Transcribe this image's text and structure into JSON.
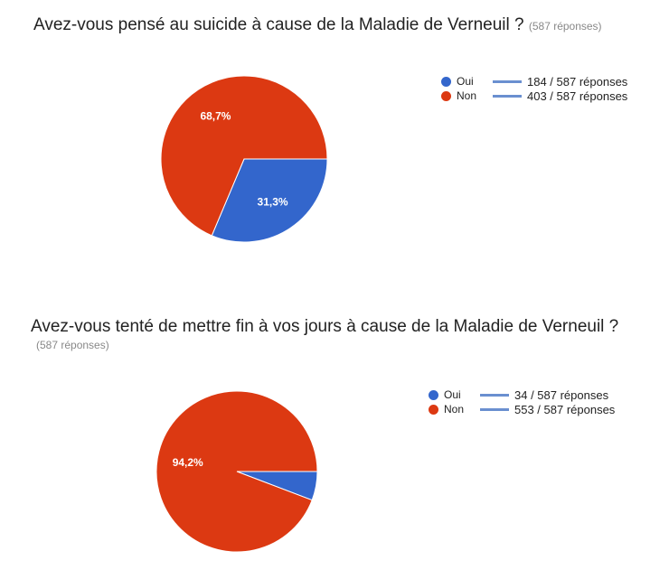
{
  "chart_data": [
    {
      "type": "pie",
      "title": "Avez-vous pensé au suicide à cause de la Maladie de Verneuil ?",
      "subtitle": "(587 réponses)",
      "categories": [
        "Oui",
        "Non"
      ],
      "values": [
        184,
        403
      ],
      "percent_labels": [
        "31,3%",
        "68,7%"
      ],
      "legend_values": [
        "184 / 587 réponses",
        "403 / 587 réponses"
      ],
      "colors": [
        "#3366cc",
        "#dc3912"
      ],
      "legend_position": "right"
    },
    {
      "type": "pie",
      "title": "Avez-vous tenté de mettre fin à vos jours à cause de la Maladie de Verneuil ?",
      "subtitle": "(587 réponses)",
      "categories": [
        "Oui",
        "Non"
      ],
      "values": [
        34,
        553
      ],
      "percent_labels": [
        "",
        "94,2%"
      ],
      "legend_values": [
        "34 / 587 réponses",
        "553 / 587 réponses"
      ],
      "colors": [
        "#3366cc",
        "#dc3912"
      ],
      "legend_position": "right"
    }
  ]
}
